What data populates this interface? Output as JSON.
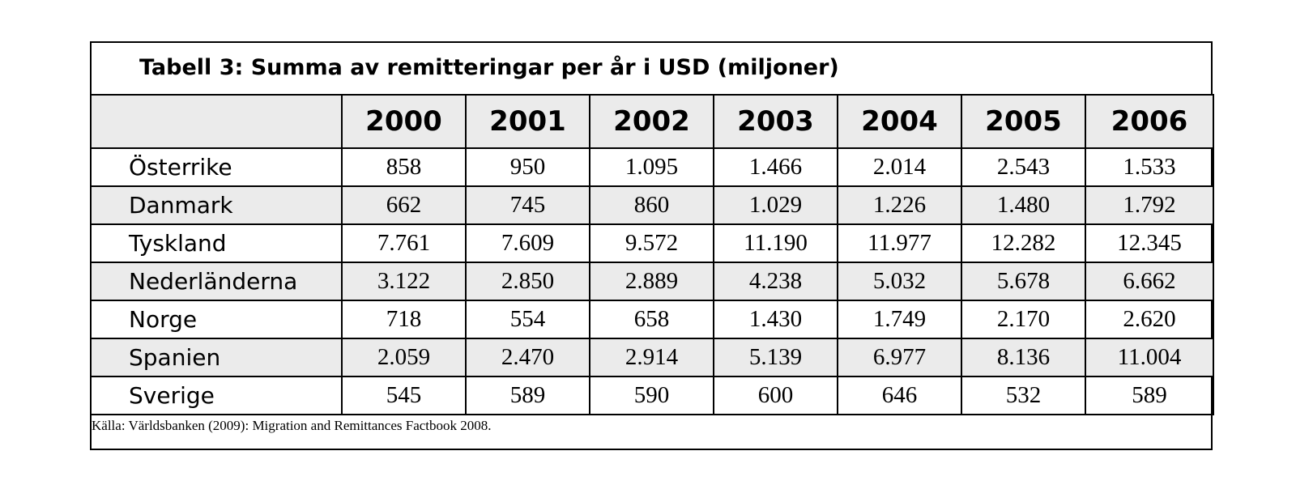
{
  "table": {
    "title": "Tabell 3: Summa av remitteringar per år i USD (miljoner)",
    "corner": "",
    "years": [
      "2000",
      "2001",
      "2002",
      "2003",
      "2004",
      "2005",
      "2006"
    ],
    "rows": [
      {
        "country": "Österrike",
        "values": [
          "858",
          "950",
          "1.095",
          "1.466",
          "2.014",
          "2.543",
          "1.533"
        ]
      },
      {
        "country": "Danmark",
        "values": [
          "662",
          "745",
          "860",
          "1.029",
          "1.226",
          "1.480",
          "1.792"
        ]
      },
      {
        "country": "Tyskland",
        "values": [
          "7.761",
          "7.609",
          "9.572",
          "11.190",
          "11.977",
          "12.282",
          "12.345"
        ]
      },
      {
        "country": "Nederländerna",
        "values": [
          "3.122",
          "2.850",
          "2.889",
          "4.238",
          "5.032",
          "5.678",
          "6.662"
        ]
      },
      {
        "country": "Norge",
        "values": [
          "718",
          "554",
          "658",
          "1.430",
          "1.749",
          "2.170",
          "2.620"
        ]
      },
      {
        "country": "Spanien",
        "values": [
          "2.059",
          "2.470",
          "2.914",
          "5.139",
          "6.977",
          "8.136",
          "11.004"
        ]
      },
      {
        "country": "Sverige",
        "values": [
          "545",
          "589",
          "590",
          "600",
          "646",
          "532",
          "589"
        ]
      }
    ],
    "source": "Källa: Världsbanken (2009): Migration and Remittances Factbook 2008."
  },
  "colors": {
    "shaded_row": "#ebebeb",
    "border": "#000000",
    "background": "#ffffff"
  }
}
